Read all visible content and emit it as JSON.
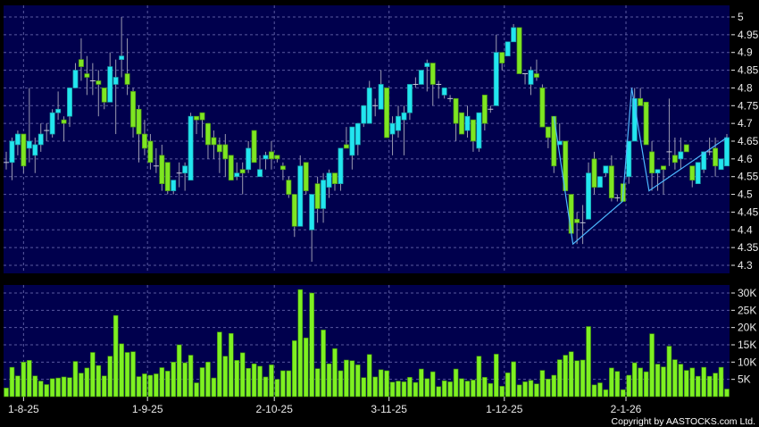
{
  "chart_data": {
    "type": "candlestick",
    "title": "",
    "colors": {
      "background": "#000000",
      "panel": "#00004d",
      "grid": "#5a5aa0",
      "up": "#22e6f0",
      "down": "#7ee622",
      "volume": "#7ef022",
      "trendline": "#4db8ff",
      "text": "#e8e8e8"
    },
    "price_axis": {
      "ylim": [
        4.3,
        5.0
      ],
      "ticks": [
        "5",
        "4.95",
        "4.9",
        "4.85",
        "4.8",
        "4.75",
        "4.7",
        "4.65",
        "4.6",
        "4.55",
        "4.5",
        "4.45",
        "4.4",
        "4.35",
        "4.3"
      ],
      "grid": true,
      "position": "right"
    },
    "volume_axis": {
      "ylim": [
        0,
        30
      ],
      "ticks": [
        "30K",
        "25K",
        "20K",
        "15K",
        "10K",
        "5K"
      ],
      "grid": true,
      "position": "right"
    },
    "x_ticks": [
      {
        "label": "1-8-25",
        "candle": 4
      },
      {
        "label": "1-9-25",
        "candle": 25.5
      },
      {
        "label": "2-10-25",
        "candle": 47.5
      },
      {
        "label": "3-11-25",
        "candle": 67.4
      },
      {
        "label": "1-12-25",
        "candle": 87.4
      },
      {
        "label": "2-1-26",
        "candle": 108.5
      }
    ],
    "ohlc_fields": [
      "open",
      "high",
      "low",
      "close"
    ],
    "candles": [
      [
        4.59,
        4.62,
        4.57,
        4.59
      ],
      [
        4.59,
        4.66,
        4.54,
        4.65
      ],
      [
        4.64,
        4.68,
        4.61,
        4.67
      ],
      [
        4.67,
        4.67,
        4.56,
        4.58
      ],
      [
        4.63,
        4.8,
        4.59,
        4.65
      ],
      [
        4.61,
        4.66,
        4.56,
        4.64
      ],
      [
        4.64,
        4.7,
        4.62,
        4.67
      ],
      [
        4.68,
        4.7,
        4.65,
        4.68
      ],
      [
        4.67,
        4.74,
        4.66,
        4.73
      ],
      [
        4.73,
        4.79,
        4.71,
        4.74
      ],
      [
        4.71,
        4.72,
        4.65,
        4.7
      ],
      [
        4.72,
        4.8,
        4.69,
        4.8
      ],
      [
        4.8,
        4.87,
        4.8,
        4.85
      ],
      [
        4.88,
        4.94,
        4.82,
        4.86
      ],
      [
        4.84,
        4.89,
        4.78,
        4.83
      ],
      [
        4.82,
        4.87,
        4.78,
        4.82
      ],
      [
        4.82,
        4.85,
        4.72,
        4.81
      ],
      [
        4.8,
        4.8,
        4.74,
        4.76
      ],
      [
        4.76,
        4.9,
        4.76,
        4.86
      ],
      [
        4.81,
        4.88,
        4.67,
        4.83
      ],
      [
        4.88,
        5.0,
        4.83,
        4.89
      ],
      [
        4.84,
        4.94,
        4.78,
        4.81
      ],
      [
        4.79,
        4.8,
        4.66,
        4.69
      ],
      [
        4.74,
        4.75,
        4.59,
        4.67
      ],
      [
        4.67,
        4.71,
        4.61,
        4.63
      ],
      [
        4.65,
        4.67,
        4.57,
        4.59
      ],
      [
        4.58,
        4.63,
        4.56,
        4.58
      ],
      [
        4.61,
        4.64,
        4.51,
        4.53
      ],
      [
        4.59,
        4.59,
        4.5,
        4.51
      ],
      [
        4.51,
        4.54,
        4.5,
        4.54
      ],
      [
        4.56,
        4.59,
        4.52,
        4.56
      ],
      [
        4.56,
        4.59,
        4.51,
        4.58
      ],
      [
        4.54,
        4.73,
        4.54,
        4.72
      ],
      [
        4.72,
        4.72,
        4.67,
        4.71
      ],
      [
        4.73,
        4.73,
        4.66,
        4.71
      ],
      [
        4.7,
        4.7,
        4.6,
        4.64
      ],
      [
        4.66,
        4.68,
        4.6,
        4.64
      ],
      [
        4.64,
        4.66,
        4.56,
        4.62
      ],
      [
        4.64,
        4.67,
        4.55,
        4.6
      ],
      [
        4.61,
        4.61,
        4.54,
        4.54
      ],
      [
        4.55,
        4.59,
        4.54,
        4.56
      ],
      [
        4.57,
        4.59,
        4.5,
        4.56
      ],
      [
        4.57,
        4.65,
        4.56,
        4.63
      ],
      [
        4.68,
        4.68,
        4.59,
        4.59
      ],
      [
        4.55,
        4.61,
        4.55,
        4.57
      ],
      [
        4.6,
        4.62,
        4.57,
        4.61
      ],
      [
        4.62,
        4.65,
        4.57,
        4.6
      ],
      [
        4.61,
        4.61,
        4.59,
        4.6
      ],
      [
        4.58,
        4.59,
        4.54,
        4.57
      ],
      [
        4.54,
        4.55,
        4.49,
        4.5
      ],
      [
        4.5,
        4.5,
        4.38,
        4.41
      ],
      [
        4.41,
        4.61,
        4.41,
        4.58
      ],
      [
        4.59,
        4.59,
        4.5,
        4.51
      ],
      [
        4.4,
        4.5,
        4.31,
        4.5
      ],
      [
        4.53,
        4.55,
        4.42,
        4.46
      ],
      [
        4.46,
        4.56,
        4.42,
        4.54
      ],
      [
        4.52,
        4.57,
        4.49,
        4.56
      ],
      [
        4.56,
        4.56,
        4.51,
        4.53
      ],
      [
        4.53,
        4.63,
        4.51,
        4.63
      ],
      [
        4.64,
        4.69,
        4.63,
        4.63
      ],
      [
        4.61,
        4.69,
        4.57,
        4.69
      ],
      [
        4.64,
        4.7,
        4.61,
        4.7
      ],
      [
        4.7,
        4.75,
        4.69,
        4.75
      ],
      [
        4.7,
        4.82,
        4.7,
        4.8
      ],
      [
        4.75,
        4.77,
        4.72,
        4.75
      ],
      [
        4.74,
        4.85,
        4.74,
        4.81
      ],
      [
        4.8,
        4.8,
        4.66,
        4.66
      ],
      [
        4.67,
        4.72,
        4.61,
        4.7
      ],
      [
        4.68,
        4.75,
        4.66,
        4.72
      ],
      [
        4.71,
        4.75,
        4.61,
        4.73
      ],
      [
        4.73,
        4.81,
        4.71,
        4.81
      ],
      [
        4.81,
        4.83,
        4.8,
        4.81
      ],
      [
        4.81,
        4.85,
        4.81,
        4.85
      ],
      [
        4.86,
        4.88,
        4.79,
        4.87
      ],
      [
        4.87,
        4.87,
        4.75,
        4.81
      ],
      [
        4.81,
        4.82,
        4.77,
        4.81
      ],
      [
        4.78,
        4.8,
        4.77,
        4.8
      ],
      [
        4.77,
        4.78,
        4.76,
        4.77
      ],
      [
        4.77,
        4.77,
        4.65,
        4.7
      ],
      [
        4.73,
        4.73,
        4.67,
        4.67
      ],
      [
        4.68,
        4.75,
        4.66,
        4.72
      ],
      [
        4.71,
        4.71,
        4.62,
        4.65
      ],
      [
        4.63,
        4.73,
        4.62,
        4.73
      ],
      [
        4.78,
        4.78,
        4.68,
        4.7
      ],
      [
        4.74,
        4.75,
        4.73,
        4.74
      ],
      [
        4.75,
        4.95,
        4.75,
        4.9
      ],
      [
        4.9,
        4.9,
        4.85,
        4.87
      ],
      [
        4.89,
        4.93,
        4.89,
        4.93
      ],
      [
        4.93,
        4.98,
        4.93,
        4.97
      ],
      [
        4.97,
        4.97,
        4.84,
        4.84
      ],
      [
        4.84,
        4.84,
        4.81,
        4.84
      ],
      [
        4.81,
        4.86,
        4.78,
        4.85
      ],
      [
        4.84,
        4.88,
        4.82,
        4.83
      ],
      [
        4.8,
        4.81,
        4.69,
        4.69
      ],
      [
        4.69,
        4.69,
        4.63,
        4.66
      ],
      [
        4.72,
        4.72,
        4.56,
        4.58
      ],
      [
        4.64,
        4.7,
        4.64,
        4.65
      ],
      [
        4.65,
        4.65,
        4.51,
        4.51
      ],
      [
        4.5,
        4.5,
        4.39,
        4.39
      ],
      [
        4.43,
        4.45,
        4.36,
        4.42
      ],
      [
        4.42,
        4.47,
        4.36,
        4.42
      ],
      [
        4.43,
        4.59,
        4.43,
        4.56
      ],
      [
        4.6,
        4.62,
        4.5,
        4.52
      ],
      [
        4.52,
        4.55,
        4.52,
        4.55
      ],
      [
        4.56,
        4.58,
        4.55,
        4.58
      ],
      [
        4.58,
        4.61,
        4.48,
        4.49
      ],
      [
        4.49,
        4.5,
        4.48,
        4.49
      ],
      [
        4.53,
        4.53,
        4.48,
        4.48
      ],
      [
        4.55,
        4.65,
        4.53,
        4.65
      ],
      [
        4.65,
        4.8,
        4.65,
        4.77
      ],
      [
        4.77,
        4.8,
        4.75,
        4.75
      ],
      [
        4.76,
        4.76,
        4.64,
        4.64
      ],
      [
        4.62,
        4.65,
        4.51,
        4.56
      ],
      [
        4.56,
        4.57,
        4.51,
        4.57
      ],
      [
        4.58,
        4.58,
        4.5,
        4.57
      ],
      [
        4.62,
        4.77,
        4.58,
        4.62
      ],
      [
        4.61,
        4.66,
        4.57,
        4.59
      ],
      [
        4.6,
        4.66,
        4.57,
        4.62
      ],
      [
        4.64,
        4.64,
        4.62,
        4.62
      ],
      [
        4.58,
        4.58,
        4.52,
        4.54
      ],
      [
        4.53,
        4.59,
        4.53,
        4.59
      ],
      [
        4.57,
        4.62,
        4.56,
        4.62
      ],
      [
        4.62,
        4.66,
        4.61,
        4.62
      ],
      [
        4.63,
        4.66,
        4.55,
        4.58
      ],
      [
        4.57,
        4.6,
        4.57,
        4.6
      ],
      [
        4.58,
        4.67,
        4.58,
        4.66
      ]
    ],
    "volume_k": [
      2.5,
      8.5,
      6,
      10,
      10.5,
      6,
      4.5,
      3.5,
      5.2,
      5.4,
      5.7,
      5.5,
      10.2,
      6.8,
      8.3,
      12.8,
      9,
      6,
      11.7,
      23.5,
      15.3,
      12.8,
      13,
      5.8,
      6.6,
      6.2,
      6.6,
      8.4,
      7.4,
      10,
      15,
      9.8,
      12,
      4,
      8.4,
      10,
      5.4,
      18.7,
      11.7,
      18.3,
      10.5,
      12.7,
      8.2,
      9.5,
      8.8,
      5.7,
      9.2,
      5,
      7.5,
      7.5,
      16.2,
      31,
      17,
      30,
      8.1,
      19.3,
      9.5,
      13.9,
      7.5,
      10.6,
      10.4,
      9.2,
      5.5,
      12.2,
      5.7,
      7.8,
      7.5,
      4.2,
      4.5,
      4.3,
      5.6,
      4.1,
      8,
      5.2,
      7.2,
      2.9,
      4.6,
      4.3,
      8,
      5.2,
      4.5,
      4.8,
      11.7,
      5.6,
      3.8,
      12.3,
      3,
      6.9,
      10.1,
      3.4,
      4.3,
      4.7,
      3.7,
      7.6,
      5.1,
      6.2,
      10.7,
      12,
      13,
      10.4,
      10.6,
      20.3,
      3.4,
      4,
      2,
      8.3,
      7.3,
      2,
      6.2,
      9.8,
      8.3,
      7.2,
      18.2,
      9.4,
      8.6,
      14.6,
      10.7,
      9.4,
      7.6,
      8.3,
      5.9,
      8.5,
      5.9,
      6.8,
      8.5,
      2.2
    ],
    "trendline": [
      [
        96,
        4.72
      ],
      [
        99.3,
        4.36
      ],
      [
        107.9,
        4.48
      ],
      [
        109.5,
        4.8
      ],
      [
        112.5,
        4.51
      ],
      [
        126,
        4.66
      ]
    ]
  },
  "footer": {
    "copyright": "Copyright by AASTOCKS.com Ltd."
  }
}
